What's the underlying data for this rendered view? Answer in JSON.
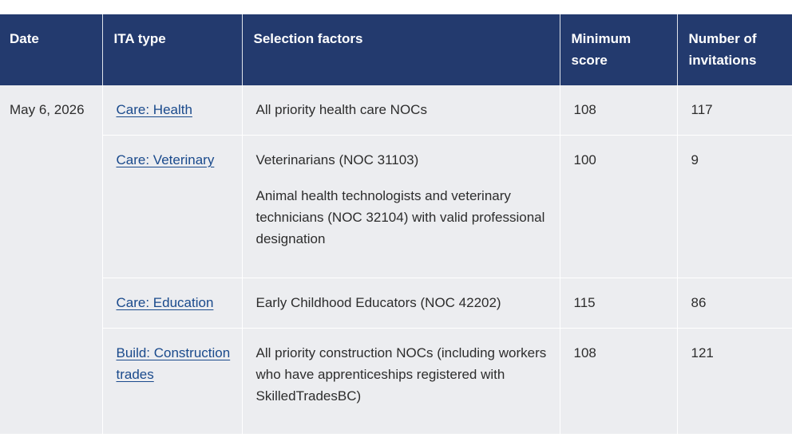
{
  "table": {
    "headers": {
      "date": "Date",
      "ita_type": "ITA type",
      "selection_factors": "Selection factors",
      "minimum_score": "Minimum score",
      "number_of_invitations": "Number of invitations"
    },
    "date": "May 6, 2026",
    "rows": [
      {
        "ita_type": "Care: Health",
        "selection_factors": [
          "All priority health care NOCs"
        ],
        "minimum_score": "108",
        "invitations": "117"
      },
      {
        "ita_type": "Care: Veterinary",
        "selection_factors": [
          "Veterinarians (NOC 31103)",
          "Animal health technologists and veterinary technicians (NOC 32104) with valid professional designation"
        ],
        "minimum_score": "100",
        "invitations": "9"
      },
      {
        "ita_type": "Care: Education",
        "selection_factors": [
          "Early Childhood Educators (NOC 42202)"
        ],
        "minimum_score": "115",
        "invitations": "86"
      },
      {
        "ita_type": "Build: Construction trades",
        "selection_factors": [
          "All priority construction NOCs (including workers who have apprenticeships registered with SkilledTradesBC)"
        ],
        "minimum_score": "108",
        "invitations": "121"
      }
    ]
  },
  "colors": {
    "header_background": "#233a6e",
    "header_text": "#ffffff",
    "body_background": "#ecedf0",
    "link": "#1a4a8c"
  }
}
